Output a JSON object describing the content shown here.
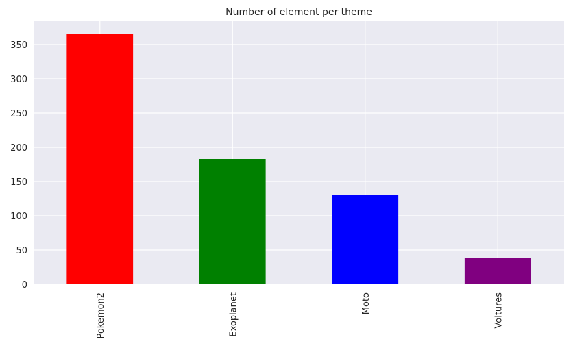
{
  "chart_data": {
    "type": "bar",
    "title": "Number of element per theme",
    "xlabel": "",
    "ylabel": "",
    "categories": [
      "Pokemon2",
      "Exoplanet",
      "Moto",
      "Voitures"
    ],
    "values": [
      366,
      183,
      130,
      38
    ],
    "colors": [
      "#ff0000",
      "#008000",
      "#0000ff",
      "#800080"
    ],
    "ylim": [
      0,
      384
    ],
    "yticks": [
      0,
      50,
      100,
      150,
      200,
      250,
      300,
      350
    ],
    "grid": true,
    "legend": "none",
    "background": "#eaeaf2",
    "grid_color": "#ffffff"
  }
}
